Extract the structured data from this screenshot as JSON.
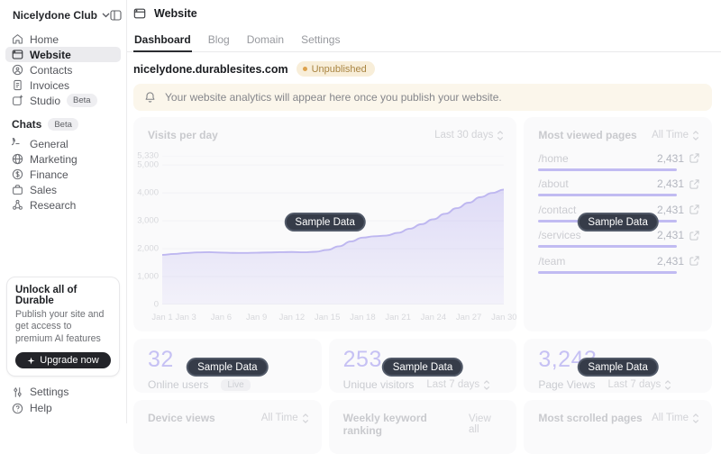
{
  "workspace": {
    "name": "Nicelydone Club"
  },
  "sidebar": {
    "items": [
      {
        "label": "Home"
      },
      {
        "label": "Website"
      },
      {
        "label": "Contacts"
      },
      {
        "label": "Invoices"
      },
      {
        "label": "Studio",
        "badge": "Beta"
      }
    ],
    "chats": {
      "title": "Chats",
      "badge": "Beta",
      "items": [
        {
          "label": "General"
        },
        {
          "label": "Marketing"
        },
        {
          "label": "Finance"
        },
        {
          "label": "Sales"
        },
        {
          "label": "Research"
        }
      ]
    },
    "upgrade": {
      "title": "Unlock all of Durable",
      "body": "Publish your site and get access to premium AI features",
      "button": "Upgrade now"
    },
    "footer_items": [
      {
        "label": "Settings"
      },
      {
        "label": "Help"
      }
    ]
  },
  "header": {
    "title": "Website"
  },
  "tabs": [
    {
      "label": "Dashboard",
      "active": true
    },
    {
      "label": "Blog"
    },
    {
      "label": "Domain"
    },
    {
      "label": "Settings"
    }
  ],
  "site": {
    "domain": "nicelydone.durablesites.com",
    "status": "Unpublished"
  },
  "banner": {
    "message": "Your website analytics will appear here once you publish your website."
  },
  "sample_badge_label": "Sample Data",
  "chart_data": {
    "type": "area",
    "title": "Visits per day",
    "range_label": "Last 30 days",
    "x": [
      1,
      2,
      3,
      4,
      5,
      6,
      7,
      8,
      9,
      10,
      11,
      12,
      13,
      14,
      15,
      16,
      17,
      18,
      19,
      20,
      21,
      22,
      23,
      24,
      25,
      26,
      27,
      28,
      29,
      30
    ],
    "values": [
      1780,
      1810,
      1845,
      1870,
      1875,
      1860,
      1850,
      1848,
      1855,
      1865,
      1875,
      1880,
      1872,
      1890,
      1955,
      2085,
      2260,
      2395,
      2445,
      2470,
      2570,
      2715,
      2880,
      3055,
      3255,
      3455,
      3650,
      3850,
      4000,
      4120
    ],
    "x_tick_days": [
      1,
      3,
      6,
      9,
      12,
      15,
      18,
      21,
      24,
      27,
      30
    ],
    "x_tick_labels": [
      "Jan 1",
      "Jan 3",
      "Jan 6",
      "Jan 9",
      "Jan 12",
      "Jan 15",
      "Jan 18",
      "Jan 21",
      "Jan 24",
      "Jan 27",
      "Jan 30"
    ],
    "y_ticks": [
      0,
      1000,
      2000,
      3000,
      4000,
      5000,
      5330
    ],
    "y_tick_labels": [
      "0",
      "1,000",
      "2,000",
      "3,000",
      "4,000",
      "5,000",
      "5,330"
    ],
    "ylim": [
      0,
      5330
    ],
    "xlabel": "",
    "ylabel": "",
    "grid": "faint-horizontal",
    "legend": "none",
    "line_color": "#beb7f0"
  },
  "most_viewed": {
    "title": "Most viewed pages",
    "range_label": "All Time",
    "rows": [
      {
        "path": "/home",
        "value": "2,431"
      },
      {
        "path": "/about",
        "value": "2,431"
      },
      {
        "path": "/contact",
        "value": "2,431"
      },
      {
        "path": "/services",
        "value": "2,431"
      },
      {
        "path": "/team",
        "value": "2,431"
      }
    ]
  },
  "stats": [
    {
      "value": "32",
      "label": "Online users",
      "tag": "Live"
    },
    {
      "value": "253",
      "label": "Unique visitors",
      "range_label": "Last 7 days"
    },
    {
      "value": "3,243",
      "label": "Page Views",
      "range_label": "Last 7 days"
    }
  ],
  "bottom_cards": [
    {
      "title": "Device views",
      "action": "All Time"
    },
    {
      "title": "Weekly keyword ranking",
      "action": "View all"
    },
    {
      "title": "Most scrolled pages",
      "action": "All Time"
    }
  ],
  "colors": {
    "accent_purple": "#beb7f0",
    "sample_badge_bg": "#363c49",
    "unpublished_bg": "#f8eed9",
    "unpublished_text": "#a98542",
    "banner_bg": "#fbf6eb",
    "stat_number": "#c6c1f4"
  }
}
